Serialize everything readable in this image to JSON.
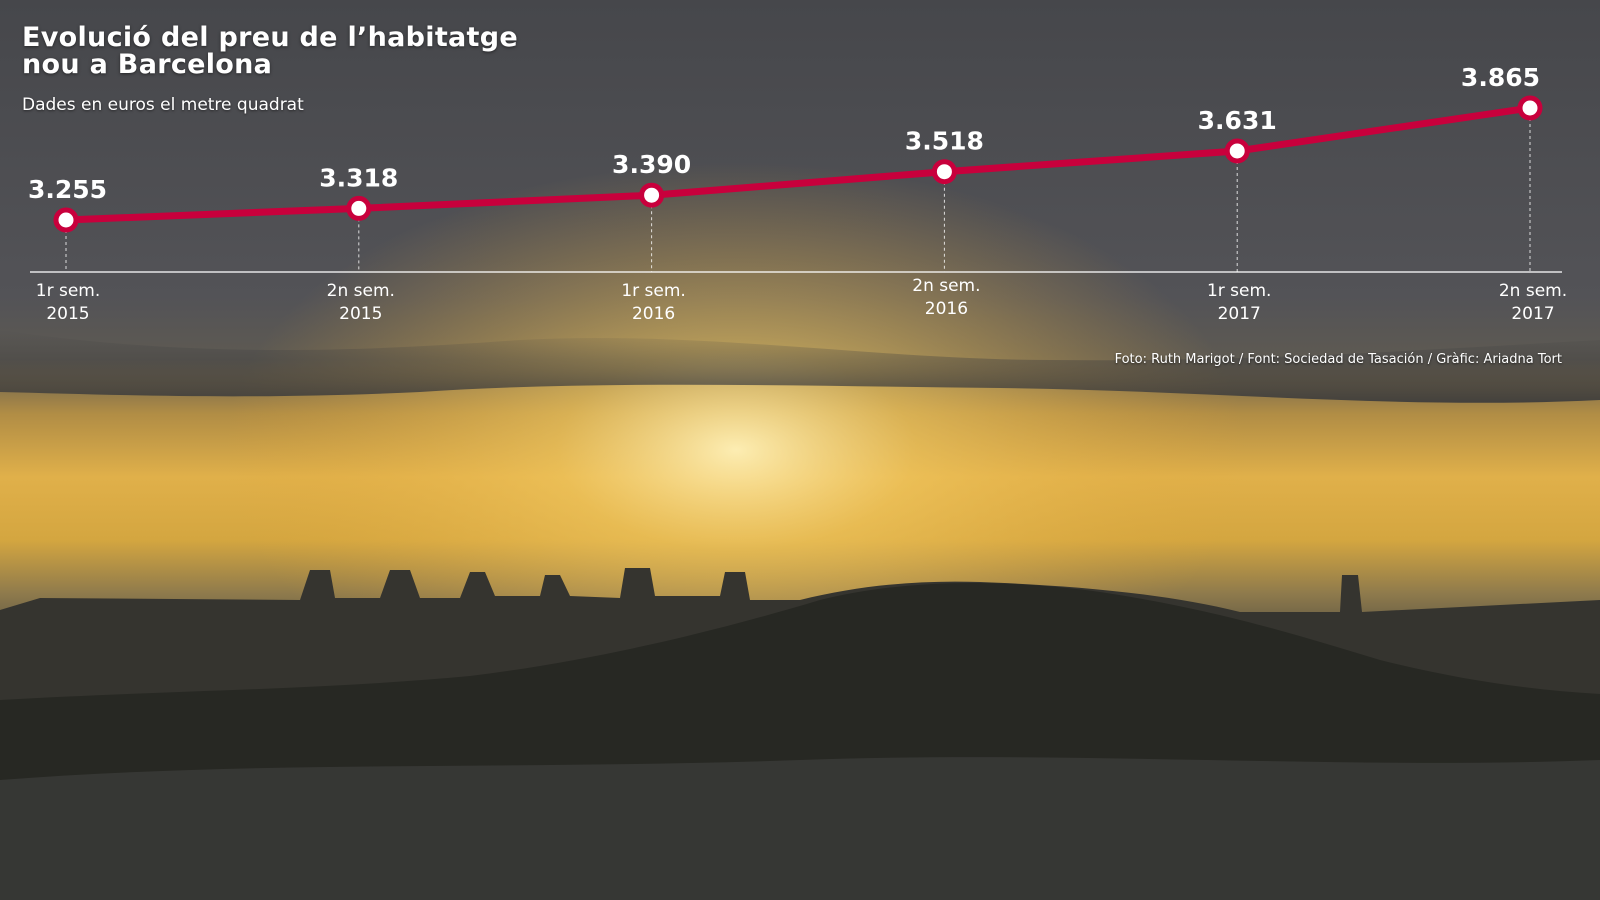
{
  "header": {
    "title": "Evolució del preu de l’habitatge nou a Barcelona",
    "subtitle": "Dades en euros el metre quadrat"
  },
  "footer": {
    "credits": "Foto: Ruth Marigot / Font: Sociedad de Tasación / Gràfic: Ariadna Tort"
  },
  "colors": {
    "line": "#c8003c",
    "marker_fill": "#ffffff",
    "text": "#ffffff",
    "sky_top": "#4a4b4f",
    "sunset": "#e8b23c"
  },
  "chart_data": {
    "type": "line",
    "categories": [
      [
        "1r sem.",
        "2015"
      ],
      [
        "2n sem.",
        "2015"
      ],
      [
        "1r sem.",
        "2016"
      ],
      [
        "2n sem.",
        "2016"
      ],
      [
        "1r sem.",
        "2017"
      ],
      [
        "2n sem.",
        "2017"
      ]
    ],
    "values": [
      3255,
      3318,
      3390,
      3518,
      3631,
      3865
    ],
    "value_labels": [
      "3.255",
      "3.318",
      "3.390",
      "3.518",
      "3.631",
      "3.865"
    ],
    "title": "Evolució del preu de l’habitatge nou a Barcelona",
    "subtitle": "Dades en euros el metre quadrat",
    "xlabel": "",
    "ylabel": "",
    "grid": false,
    "legend": "none"
  }
}
